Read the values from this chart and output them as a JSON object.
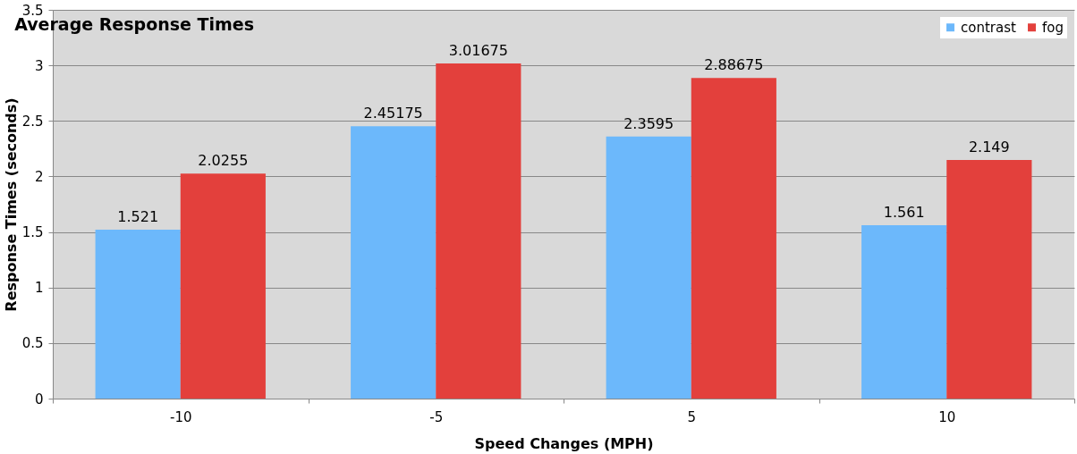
{
  "chart_data": {
    "type": "bar",
    "title": "Average Response Times",
    "xlabel": "Speed Changes (MPH)",
    "ylabel": "Response Times (seconds)",
    "categories": [
      "-10",
      "-5",
      "5",
      "10"
    ],
    "series": [
      {
        "name": "contrast",
        "color": "#6cb8fb",
        "values": [
          1.521,
          2.45175,
          2.3595,
          1.561
        ]
      },
      {
        "name": "fog",
        "color": "#e3403c",
        "values": [
          2.0255,
          3.01675,
          2.88675,
          2.149
        ]
      }
    ],
    "ylim": [
      0,
      3.5
    ],
    "yticks": [
      0,
      0.5,
      1,
      1.5,
      2,
      2.5,
      3,
      3.5
    ],
    "grid": "y",
    "legend": "top right",
    "data_labels": true
  }
}
